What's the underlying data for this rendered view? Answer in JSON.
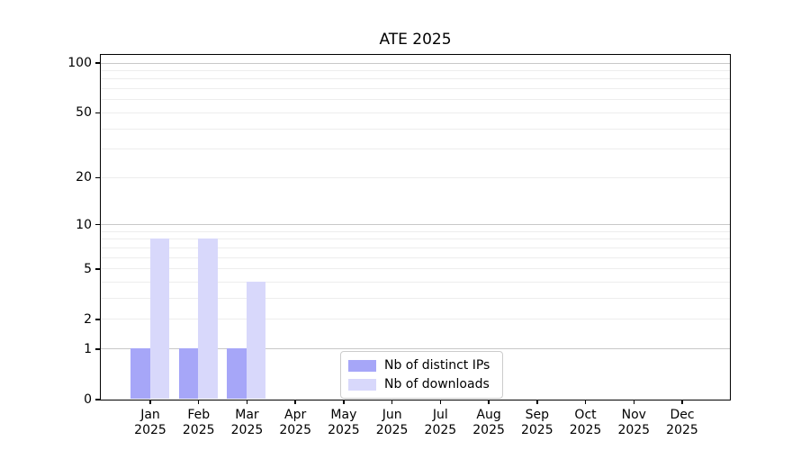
{
  "chart_data": {
    "type": "bar",
    "title": "ATE 2025",
    "year_label": "2025",
    "categories": [
      "Jan",
      "Feb",
      "Mar",
      "Apr",
      "May",
      "Jun",
      "Jul",
      "Aug",
      "Sep",
      "Oct",
      "Nov",
      "Dec"
    ],
    "series": [
      {
        "name": "Nb of distinct IPs",
        "color": "#a6a6f8",
        "values": [
          1,
          1,
          1,
          0,
          0,
          0,
          0,
          0,
          0,
          0,
          0,
          0
        ]
      },
      {
        "name": "Nb of downloads",
        "color": "#d8d8fb",
        "values": [
          8,
          8,
          4,
          0,
          0,
          0,
          0,
          0,
          0,
          0,
          0,
          0
        ]
      }
    ],
    "yscale": "log1p",
    "ylim": [
      0,
      112
    ],
    "yticks": [
      0,
      1,
      2,
      5,
      10,
      20,
      50,
      100
    ],
    "grid": {
      "major": [
        1,
        10,
        100
      ],
      "minor": [
        2,
        3,
        4,
        5,
        6,
        7,
        8,
        9,
        20,
        30,
        40,
        50,
        60,
        70,
        80,
        90
      ]
    },
    "legend_position": "lower-center",
    "axis_color": "#000000"
  }
}
